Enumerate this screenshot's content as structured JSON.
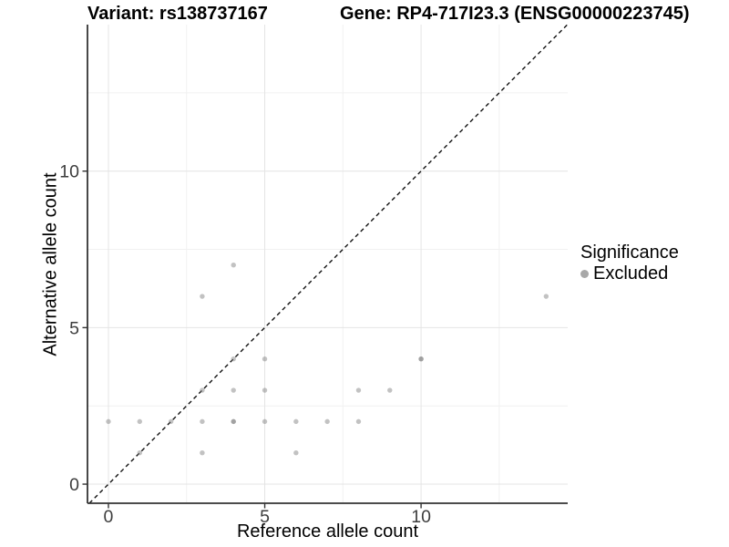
{
  "figure": {
    "title_left": "Variant: rs138737167",
    "title_right": "Gene: RP4-717I23.3 (ENSG00000223745)"
  },
  "chart_data": {
    "type": "scatter",
    "title_left": "Variant: rs138737167",
    "title_right": "Gene: RP4-717I23.3 (ENSG00000223745)",
    "xlabel": "Reference allele count",
    "ylabel": "Alternative allele count",
    "xlim": [
      -0.67,
      14.69
    ],
    "ylim": [
      -0.61,
      14.68
    ],
    "xticks": [
      0,
      5,
      10
    ],
    "yticks": [
      0,
      5,
      10
    ],
    "minor_xticks": [
      2.5,
      7.5,
      12.5
    ],
    "minor_yticks": [
      2.5,
      7.5,
      12.5
    ],
    "grid": true,
    "identity_line": {
      "style": "dashed",
      "slope": 1,
      "intercept": 0,
      "color": "#111111"
    },
    "series": [
      {
        "name": "Excluded",
        "point_color_rgba": "rgba(128,128,128,0.48)",
        "points": [
          [
            0,
            2
          ],
          [
            1,
            1
          ],
          [
            1,
            2
          ],
          [
            2,
            2
          ],
          [
            3,
            1
          ],
          [
            3,
            2
          ],
          [
            3,
            3
          ],
          [
            3,
            6
          ],
          [
            4,
            2
          ],
          [
            4,
            2
          ],
          [
            4,
            3
          ],
          [
            4,
            4
          ],
          [
            4,
            7
          ],
          [
            5,
            2
          ],
          [
            5,
            3
          ],
          [
            5,
            4
          ],
          [
            6,
            1
          ],
          [
            6,
            2
          ],
          [
            7,
            2
          ],
          [
            8,
            2
          ],
          [
            8,
            3
          ],
          [
            9,
            3
          ],
          [
            10,
            4
          ],
          [
            10,
            4
          ],
          [
            14,
            6
          ]
        ]
      }
    ],
    "legend": {
      "title": "Significance",
      "position": "right",
      "items": [
        {
          "label": "Excluded",
          "marker": "gray-dot",
          "marker_color": "#a8a8a8"
        }
      ]
    },
    "colors": {
      "background": "#ffffff",
      "major_grid": "#e4e4e4",
      "minor_grid": "#f1f1f1",
      "axis_line": "#333333",
      "tick_label": "#3d3d3d",
      "point": "rgba(128,128,128,0.48)"
    }
  }
}
